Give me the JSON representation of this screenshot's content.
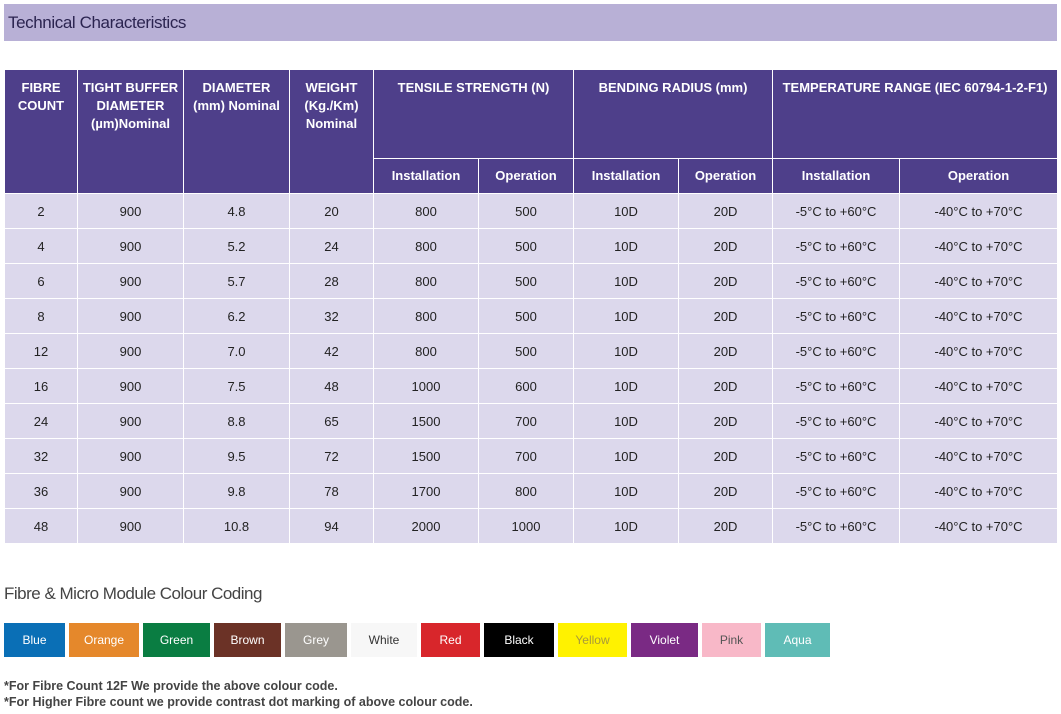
{
  "section_title": "Technical Characteristics",
  "table": {
    "headers": {
      "fibre_count": "FIBRE COUNT",
      "tight_buffer": "TIGHT BUFFER DIAMETER (µm)Nominal",
      "diameter": "DIAMETER (mm) Nominal",
      "weight": "WEIGHT (Kg./Km) Nominal",
      "tensile": "TENSILE STRENGTH (N)",
      "bending": "BENDING RADIUS (mm)",
      "temperature": "TEMPERATURE RANGE (IEC 60794-1-2-F1)",
      "installation": "Installation",
      "operation": "Operation"
    },
    "rows": [
      [
        "2",
        "900",
        "4.8",
        "20",
        "800",
        "500",
        "10D",
        "20D",
        "-5°C to +60°C",
        "-40°C to +70°C"
      ],
      [
        "4",
        "900",
        "5.2",
        "24",
        "800",
        "500",
        "10D",
        "20D",
        "-5°C to +60°C",
        "-40°C to +70°C"
      ],
      [
        "6",
        "900",
        "5.7",
        "28",
        "800",
        "500",
        "10D",
        "20D",
        "-5°C to +60°C",
        "-40°C to +70°C"
      ],
      [
        "8",
        "900",
        "6.2",
        "32",
        "800",
        "500",
        "10D",
        "20D",
        "-5°C to +60°C",
        "-40°C to +70°C"
      ],
      [
        "12",
        "900",
        "7.0",
        "42",
        "800",
        "500",
        "10D",
        "20D",
        "-5°C to +60°C",
        "-40°C to +70°C"
      ],
      [
        "16",
        "900",
        "7.5",
        "48",
        "1000",
        "600",
        "10D",
        "20D",
        "-5°C to +60°C",
        "-40°C to +70°C"
      ],
      [
        "24",
        "900",
        "8.8",
        "65",
        "1500",
        "700",
        "10D",
        "20D",
        "-5°C to +60°C",
        "-40°C to +70°C"
      ],
      [
        "32",
        "900",
        "9.5",
        "72",
        "1500",
        "700",
        "10D",
        "20D",
        "-5°C to +60°C",
        "-40°C to +70°C"
      ],
      [
        "36",
        "900",
        "9.8",
        "78",
        "1700",
        "800",
        "10D",
        "20D",
        "-5°C to +60°C",
        "-40°C to +70°C"
      ],
      [
        "48",
        "900",
        "10.8",
        "94",
        "2000",
        "1000",
        "10D",
        "20D",
        "-5°C to +60°C",
        "-40°C to +70°C"
      ]
    ]
  },
  "colour_coding": {
    "title": "Fibre & Micro Module Colour Coding",
    "swatches": [
      {
        "label": "Blue",
        "color": "#0a6fb6",
        "text": "#ffffff"
      },
      {
        "label": "Orange",
        "color": "#e5882b",
        "text": "#ffffff"
      },
      {
        "label": "Green",
        "color": "#0a7d42",
        "text": "#ffffff"
      },
      {
        "label": "Brown",
        "color": "#6b3226",
        "text": "#ffffff"
      },
      {
        "label": "Grey",
        "color": "#9a968f",
        "text": "#ffffff"
      },
      {
        "label": "White",
        "color": "#f7f7f7",
        "text": "#333333"
      },
      {
        "label": "Red",
        "color": "#d8262b",
        "text": "#ffffff"
      },
      {
        "label": "Black",
        "color": "#000000",
        "text": "#ffffff"
      },
      {
        "label": "Yellow",
        "color": "#fff200",
        "text": "#a89a3a"
      },
      {
        "label": "Violet",
        "color": "#7a2a84",
        "text": "#ffffff"
      },
      {
        "label": "Pink",
        "color": "#f8b8c8",
        "text": "#555555"
      },
      {
        "label": "Aqua",
        "color": "#5fbcb6",
        "text": "#ffffff"
      }
    ]
  },
  "notes": [
    "*For Fibre Count 12F We provide the above colour code.",
    "*For Higher Fibre count we provide contrast dot marking of above colour code."
  ]
}
